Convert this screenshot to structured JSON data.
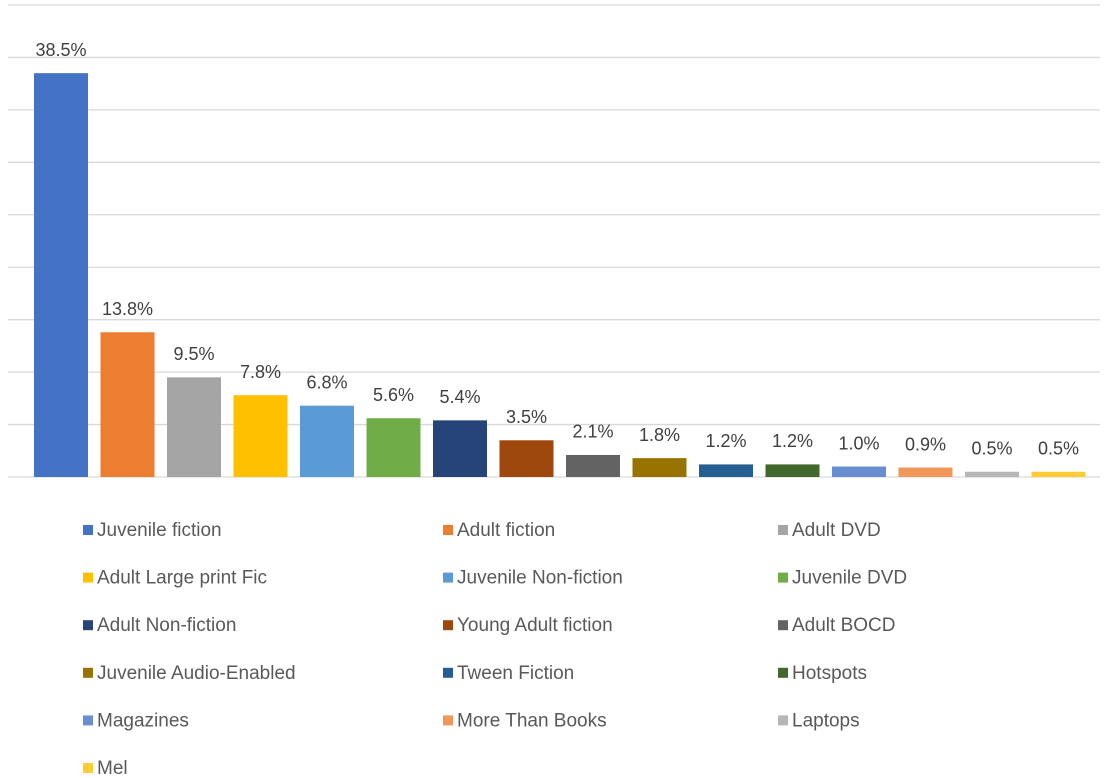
{
  "chart_data": {
    "type": "bar",
    "categories": [
      "Juvenile fiction",
      "Adult fiction",
      "Adult DVD",
      "Adult Large print Fic",
      "Juvenile Non-fiction",
      "Juvenile DVD",
      "Adult Non-fiction",
      "Young Adult fiction",
      "Adult BOCD",
      "Juvenile Audio-Enabled",
      "Tween Fiction",
      "Hotspots",
      "Magazines",
      "More Than Books",
      "Laptops",
      "Mel"
    ],
    "values": [
      38.5,
      13.8,
      9.5,
      7.8,
      6.8,
      5.6,
      5.4,
      3.5,
      2.1,
      1.8,
      1.2,
      1.2,
      1.0,
      0.9,
      0.5,
      0.5
    ],
    "value_labels": [
      "38.5%",
      "13.8%",
      "9.5%",
      "7.8%",
      "6.8%",
      "5.6%",
      "5.4%",
      "3.5%",
      "2.1%",
      "1.8%",
      "1.2%",
      "1.2%",
      "1.0%",
      "0.9%",
      "0.5%",
      "0.5%"
    ],
    "colors": [
      "#4472c4",
      "#ed7d31",
      "#a5a5a5",
      "#ffc000",
      "#5b9bd5",
      "#70ad47",
      "#264478",
      "#9e480e",
      "#636363",
      "#997300",
      "#255e91",
      "#43682b",
      "#698ed0",
      "#f1975a",
      "#b7b7b7",
      "#ffcd33"
    ],
    "ylim": [
      0,
      45
    ],
    "yticks": [
      0,
      5,
      10,
      15,
      20,
      25,
      30,
      35,
      40,
      45
    ],
    "grid": true,
    "legend": "bottom"
  }
}
